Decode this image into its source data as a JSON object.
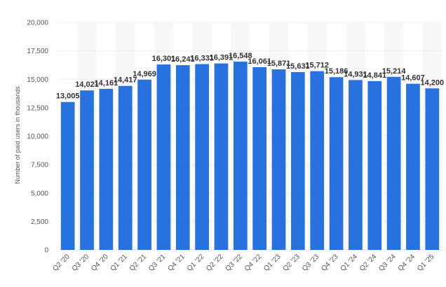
{
  "chart_data": {
    "type": "bar",
    "title": "",
    "xlabel": "",
    "ylabel": "Number of paid users in thousands",
    "ylim": [
      0,
      20000
    ],
    "yticks": [
      0,
      2500,
      5000,
      7500,
      10000,
      12500,
      15000,
      17500,
      20000
    ],
    "ytick_labels": [
      "0",
      "2,500",
      "5,000",
      "7,500",
      "10,000",
      "12,500",
      "15,000",
      "17,500",
      "20,000"
    ],
    "grid": true,
    "bar_color": "#2872e0",
    "band_color": "#f7f7f7",
    "grid_color": "#e4e4e4",
    "categories": [
      "Q2 '20",
      "Q3 '20",
      "Q4 '20",
      "Q1 '21",
      "Q2 '21",
      "Q3 '21",
      "Q4 '21",
      "Q1 '22",
      "Q2 '22",
      "Q3 '22",
      "Q4 '22",
      "Q1 '23",
      "Q2 '23",
      "Q3 '23",
      "Q4 '23",
      "Q1 '24",
      "Q2 '24",
      "Q3 '24",
      "Q4 '24",
      "Q1 '25"
    ],
    "values": [
      13005,
      14021,
      14161,
      14417,
      14969,
      16301,
      16241,
      16331,
      16391,
      16548,
      16061,
      15871,
      15631,
      15712,
      15186,
      14931,
      14841,
      15214,
      14607,
      14200
    ],
    "data_labels": [
      "13,005",
      "14,021",
      "14,161",
      "14,417",
      "14,969",
      "16,301",
      "16,241",
      "16,331",
      "16,391",
      "16,548",
      "16,061",
      "15,871",
      "15,631",
      "15,712",
      "15,186",
      "14,931",
      "14,841",
      "15,214",
      "14,607",
      "14,200"
    ]
  }
}
